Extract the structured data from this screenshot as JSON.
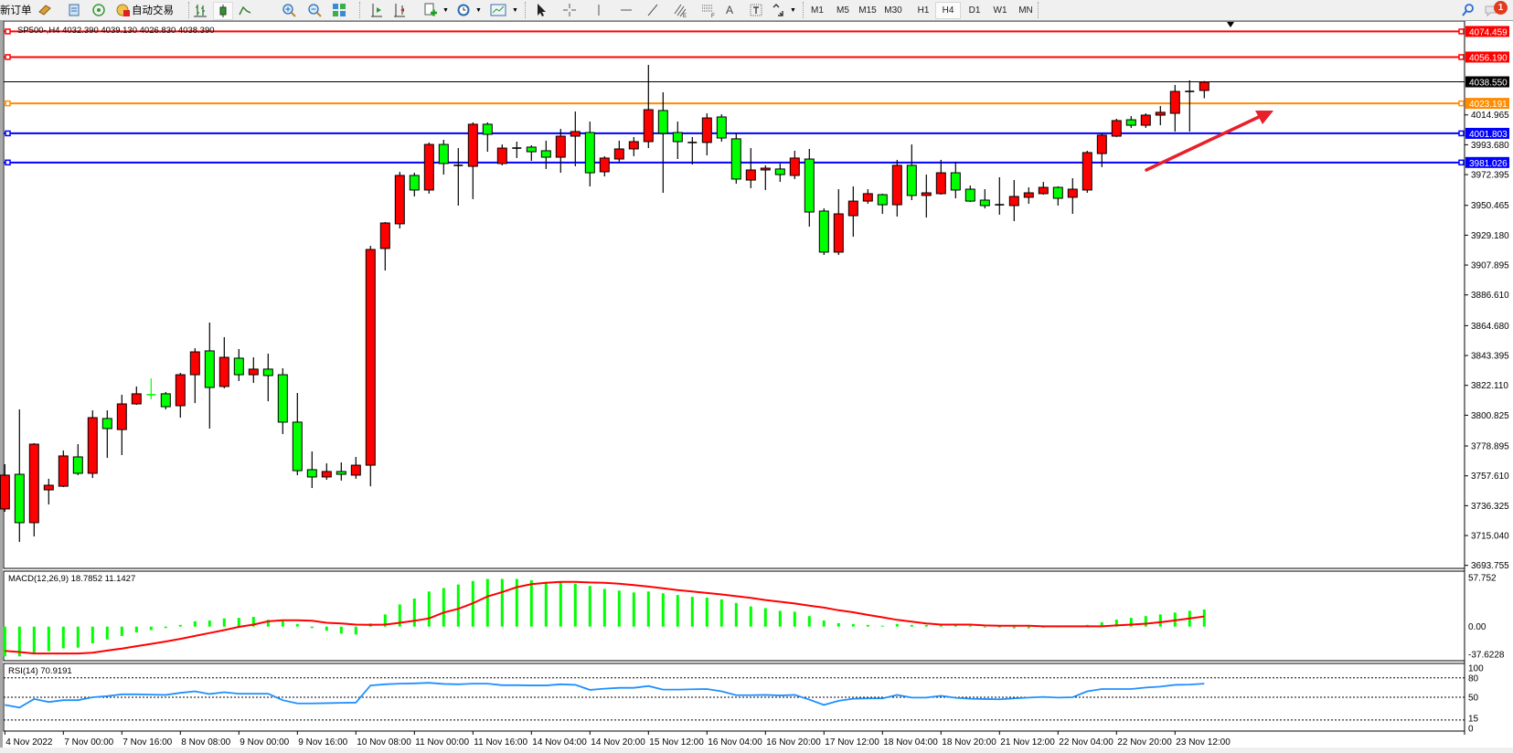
{
  "toolbar": {
    "new_order": "新订单",
    "auto_trading": "自动交易",
    "icons": [
      "new-order-icon",
      "gold-bars-icon",
      "market-watch-icon",
      "signals-icon",
      "auto-trading-icon",
      "bar-chart-icon",
      "candlestick-icon",
      "line-chart-icon",
      "zoom-in-icon",
      "zoom-out-icon",
      "tile-windows-icon",
      "auto-scroll-icon",
      "chart-shift-icon",
      "add-indicator-icon",
      "periods-clock-icon",
      "templates-icon",
      "cursor-icon",
      "crosshair-icon",
      "vertical-line-icon",
      "horizontal-line-icon",
      "trendline-icon",
      "fibo-channel-icon",
      "fibo-retracement-icon",
      "text-icon",
      "text-label-icon",
      "arrows-icon",
      "search-icon",
      "notification-icon"
    ],
    "text_tool": "A",
    "timeframes": [
      "M1",
      "M5",
      "M15",
      "M30",
      "H1",
      "H4",
      "D1",
      "W1",
      "MN"
    ],
    "active_timeframe": "H4",
    "notification_count": "1"
  },
  "chart": {
    "info": "SP500-,H4  4032.390 4039.130 4026.830 4038.390",
    "bid_price": "4038.550",
    "levels": [
      {
        "value": "4074.459",
        "color": "#ff0000"
      },
      {
        "value": "4056.190",
        "color": "#ff0000"
      },
      {
        "value": "4023.191",
        "color": "#ff8c00"
      },
      {
        "value": "4001.803",
        "color": "#0000ff"
      },
      {
        "value": "3981.026",
        "color": "#0000ff"
      }
    ],
    "price_ticks": [
      "4014.965",
      "3993.680",
      "3972.395",
      "3950.465",
      "3929.180",
      "3907.895",
      "3886.610",
      "3864.680",
      "3843.395",
      "3822.110",
      "3800.825",
      "3778.895",
      "3757.610",
      "3736.325",
      "3715.040",
      "3693.755"
    ],
    "time_labels": [
      "4 Nov 2022",
      "7 Nov 00:00",
      "7 Nov 16:00",
      "8 Nov 08:00",
      "9 Nov 00:00",
      "9 Nov 16:00",
      "10 Nov 08:00",
      "11 Nov 00:00",
      "11 Nov 16:00",
      "14 Nov 04:00",
      "14 Nov 20:00",
      "15 Nov 12:00",
      "16 Nov 04:00",
      "16 Nov 20:00",
      "17 Nov 12:00",
      "18 Nov 04:00",
      "18 Nov 20:00",
      "21 Nov 12:00",
      "22 Nov 04:00",
      "22 Nov 20:00",
      "23 Nov 12:00"
    ],
    "annotation_arrow_color": "#e8202a"
  },
  "macd": {
    "label": "MACD(12,26,9) 18.7852 11.1427",
    "ticks": [
      "57.752",
      "0.00",
      "-37.6228"
    ]
  },
  "rsi": {
    "label": "RSI(14) 70.9191",
    "ticks": [
      "100",
      "80",
      "50",
      "15",
      "0"
    ],
    "levels": [
      80,
      50,
      15
    ]
  },
  "chart_data": {
    "type": "candlestick",
    "ohlc_order": [
      "open",
      "high",
      "low",
      "close"
    ],
    "up_color": "#ff0000",
    "down_color": "#00ff00",
    "ylim": [
      3691.6,
      4081.9
    ],
    "ohlc": [
      [
        3734.0,
        3765.9,
        3732.0,
        3758.1
      ],
      [
        3758.7,
        3805.0,
        3710.5,
        3724.2
      ],
      [
        3724.2,
        3780.9,
        3714.4,
        3780.2
      ],
      [
        3747.6,
        3755.5,
        3737.2,
        3750.9
      ],
      [
        3750.2,
        3775.7,
        3749.6,
        3771.8
      ],
      [
        3771.1,
        3780.2,
        3758.1,
        3759.4
      ],
      [
        3759.4,
        3804.3,
        3756.1,
        3799.1
      ],
      [
        3798.5,
        3804.3,
        3770.4,
        3791.3
      ],
      [
        3790.6,
        3815.4,
        3772.4,
        3808.9
      ],
      [
        3808.9,
        3821.3,
        3808.2,
        3816.1
      ],
      [
        3815.5,
        3827.1,
        3812.2,
        3815.4
      ],
      [
        3816.1,
        3817.4,
        3805.0,
        3806.9
      ],
      [
        3807.6,
        3831.0,
        3799.1,
        3829.7
      ],
      [
        3829.7,
        3848.6,
        3809.5,
        3846.0
      ],
      [
        3846.7,
        3866.9,
        3791.3,
        3820.6
      ],
      [
        3821.3,
        3856.5,
        3820.0,
        3842.1
      ],
      [
        3841.5,
        3848.0,
        3825.2,
        3829.7
      ],
      [
        3829.7,
        3842.1,
        3823.9,
        3833.7
      ],
      [
        3833.7,
        3844.7,
        3810.8,
        3829.1
      ],
      [
        3829.7,
        3834.3,
        3787.4,
        3795.9
      ],
      [
        3795.9,
        3816.7,
        3758.1,
        3761.3
      ],
      [
        3762.0,
        3775.0,
        3748.9,
        3756.8
      ],
      [
        3756.8,
        3766.5,
        3754.8,
        3760.7
      ],
      [
        3760.7,
        3767.2,
        3754.2,
        3758.7
      ],
      [
        3758.1,
        3771.1,
        3755.5,
        3765.2
      ],
      [
        3765.2,
        3921.6,
        3750.2,
        3919.0
      ],
      [
        3919.7,
        3938.6,
        3904.0,
        3937.9
      ],
      [
        3937.3,
        3974.4,
        3934.0,
        3971.8
      ],
      [
        3971.8,
        3973.7,
        3956.8,
        3961.4
      ],
      [
        3961.4,
        3995.3,
        3958.8,
        3993.9
      ],
      [
        3993.9,
        3997.2,
        3972.4,
        3980.3
      ],
      [
        3979.0,
        3991.3,
        3950.3,
        3979.0
      ],
      [
        3978.3,
        4009.6,
        3954.9,
        4008.3
      ],
      [
        4008.3,
        4009.6,
        3988.7,
        4001.1
      ],
      [
        3980.3,
        3993.9,
        3979.0,
        3991.3
      ],
      [
        3991.3,
        3995.9,
        3984.2,
        3991.3
      ],
      [
        3992.0,
        3993.3,
        3982.2,
        3988.7
      ],
      [
        3989.4,
        3996.6,
        3976.4,
        3984.8
      ],
      [
        3984.8,
        4005.0,
        3973.7,
        3999.8
      ],
      [
        3999.8,
        4017.4,
        3978.3,
        4003.1
      ],
      [
        4002.4,
        4010.2,
        3964.0,
        3973.7
      ],
      [
        3974.4,
        3985.5,
        3971.1,
        3984.2
      ],
      [
        3983.5,
        3996.6,
        3981.6,
        3990.7
      ],
      [
        3990.7,
        3999.2,
        3985.5,
        3995.9
      ],
      [
        3995.9,
        4050.6,
        3991.3,
        4018.7
      ],
      [
        4018.1,
        4031.1,
        3959.4,
        4001.8
      ],
      [
        4002.4,
        4010.2,
        3983.5,
        3995.9
      ],
      [
        3995.3,
        3999.2,
        3979.6,
        3995.3
      ],
      [
        3995.3,
        4016.1,
        3986.1,
        4012.8
      ],
      [
        4013.5,
        4015.4,
        3995.9,
        3998.5
      ],
      [
        3997.9,
        4001.8,
        3965.9,
        3969.2
      ],
      [
        3968.5,
        3991.3,
        3962.7,
        3975.7
      ],
      [
        3975.7,
        3979.0,
        3961.4,
        3977.0
      ],
      [
        3976.4,
        3980.3,
        3967.2,
        3972.4
      ],
      [
        3971.8,
        3989.4,
        3969.2,
        3984.2
      ],
      [
        3983.5,
        3990.7,
        3935.3,
        3945.7
      ],
      [
        3946.4,
        3948.3,
        3915.1,
        3917.1
      ],
      [
        3917.1,
        3962.0,
        3915.1,
        3944.4
      ],
      [
        3943.1,
        3964.0,
        3928.1,
        3953.5
      ],
      [
        3953.5,
        3962.0,
        3951.6,
        3958.8
      ],
      [
        3958.1,
        3958.8,
        3944.4,
        3950.9
      ],
      [
        3950.9,
        3982.9,
        3942.5,
        3979.0
      ],
      [
        3979.0,
        3993.9,
        3954.2,
        3957.5
      ],
      [
        3957.5,
        3972.4,
        3941.8,
        3959.4
      ],
      [
        3958.8,
        3982.9,
        3958.1,
        3973.7
      ],
      [
        3973.7,
        3981.6,
        3955.5,
        3961.4
      ],
      [
        3962.0,
        3964.6,
        3952.9,
        3953.5
      ],
      [
        3954.2,
        3962.0,
        3948.3,
        3950.3
      ],
      [
        3950.9,
        3970.5,
        3943.8,
        3950.9
      ],
      [
        3950.3,
        3968.5,
        3939.2,
        3956.8
      ],
      [
        3956.2,
        3963.3,
        3951.6,
        3959.4
      ],
      [
        3958.8,
        3967.2,
        3958.1,
        3963.3
      ],
      [
        3963.3,
        3964.0,
        3950.3,
        3955.5
      ],
      [
        3956.2,
        3969.8,
        3944.4,
        3962.0
      ],
      [
        3961.4,
        3989.4,
        3959.4,
        3988.1
      ],
      [
        3987.4,
        4001.8,
        3977.7,
        4000.5
      ],
      [
        3999.8,
        4012.2,
        3999.2,
        4010.9
      ],
      [
        4011.5,
        4014.1,
        4005.7,
        4007.6
      ],
      [
        4007.6,
        4016.1,
        4005.7,
        4014.8
      ],
      [
        4014.8,
        4021.3,
        4007.6,
        4016.8
      ],
      [
        4016.1,
        4036.3,
        4003.1,
        4031.7
      ],
      [
        4031.7,
        4039.6,
        4003.1,
        4031.7
      ],
      [
        4032.39,
        4039.13,
        4026.83,
        4038.39
      ]
    ],
    "macd": {
      "ylim": [
        -37.6228,
        57.752
      ],
      "main_color": "#00ff00",
      "signal_color": "#ff0000",
      "main": [
        -32.6,
        -32.6,
        -28.5,
        -26.9,
        -23.7,
        -23.0,
        -18.2,
        -14.1,
        -10.2,
        -6.4,
        -3.8,
        -1.6,
        1.9,
        5.8,
        6.7,
        9.0,
        9.6,
        10.6,
        7.4,
        6.4,
        2.9,
        -1.6,
        -4.5,
        -7.7,
        -8.6,
        3.5,
        13.4,
        24.3,
        30.7,
        38.4,
        42.2,
        46.1,
        49.9,
        52.2,
        52.2,
        52.2,
        50.9,
        49.0,
        49.0,
        47.0,
        44.5,
        41.3,
        39.4,
        37.4,
        38.4,
        36.5,
        34.6,
        32.6,
        31.7,
        29.8,
        25.9,
        22.1,
        20.2,
        17.3,
        16.3,
        11.5,
        6.7,
        3.8,
        2.9,
        1.9,
        1.0,
        2.9,
        1.9,
        1.9,
        1.6,
        1.6,
        1.0,
        -1.0,
        -0.6,
        -1.9,
        -1.9,
        0.0,
        0.3,
        0.5,
        1.9,
        4.8,
        7.7,
        9.6,
        11.5,
        13.4,
        15.4,
        17.3,
        18.7852
      ],
      "signal": [
        -26.6,
        -27.8,
        -29.4,
        -29.4,
        -29.4,
        -29.4,
        -28.5,
        -26.2,
        -24.0,
        -21.4,
        -18.9,
        -16.3,
        -13.4,
        -10.2,
        -7.0,
        -3.8,
        -0.3,
        2.2,
        5.8,
        7.0,
        7.0,
        6.4,
        4.2,
        3.5,
        2.2,
        1.9,
        2.2,
        4.2,
        6.4,
        9.0,
        15.4,
        19.5,
        25.6,
        33.0,
        37.8,
        43.2,
        46.4,
        48.0,
        49.0,
        49.0,
        48.3,
        48.0,
        47.0,
        45.4,
        43.8,
        41.9,
        40.0,
        38.4,
        36.8,
        35.2,
        33.3,
        31.4,
        29.1,
        27.2,
        25.3,
        23.0,
        20.8,
        17.9,
        15.7,
        12.8,
        10.2,
        7.4,
        5.4,
        3.5,
        2.2,
        2.2,
        2.2,
        1.3,
        1.0,
        1.0,
        1.0,
        0.3,
        0.3,
        0.3,
        0.3,
        0.3,
        1.3,
        2.2,
        3.2,
        4.8,
        6.8,
        9.0,
        11.1427
      ]
    },
    "rsi": {
      "ylim": [
        0,
        100
      ],
      "color": "#1e90ff",
      "values": [
        38.2,
        34.1,
        47.3,
        42.7,
        45.5,
        45.5,
        50.0,
        51.8,
        54.5,
        54.5,
        54.1,
        53.6,
        56.8,
        59.1,
        55.0,
        57.7,
        55.5,
        55.5,
        55.5,
        45.5,
        40.5,
        40.5,
        40.9,
        41.4,
        41.8,
        68.2,
        70.0,
        70.9,
        71.4,
        72.3,
        70.5,
        70.0,
        70.9,
        70.9,
        68.6,
        68.6,
        68.2,
        68.2,
        70.0,
        69.1,
        61.4,
        63.2,
        64.5,
        64.5,
        67.3,
        61.8,
        61.8,
        62.3,
        62.7,
        59.1,
        53.2,
        53.2,
        53.6,
        52.7,
        53.6,
        46.4,
        38.2,
        44.5,
        47.7,
        48.2,
        48.2,
        53.6,
        49.5,
        49.5,
        52.3,
        49.1,
        47.7,
        47.3,
        46.8,
        48.2,
        49.5,
        50.5,
        49.5,
        50.0,
        59.1,
        62.7,
        62.7,
        62.7,
        65.0,
        66.4,
        69.1,
        69.5,
        70.9191
      ]
    }
  }
}
